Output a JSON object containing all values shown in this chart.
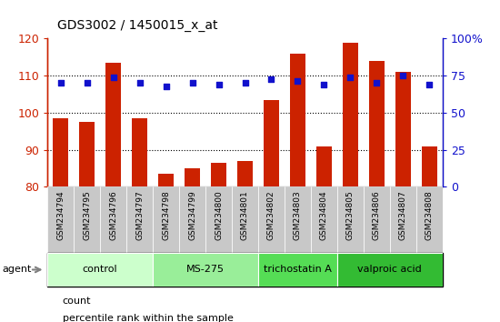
{
  "title": "GDS3002 / 1450015_x_at",
  "samples": [
    "GSM234794",
    "GSM234795",
    "GSM234796",
    "GSM234797",
    "GSM234798",
    "GSM234799",
    "GSM234800",
    "GSM234801",
    "GSM234802",
    "GSM234803",
    "GSM234804",
    "GSM234805",
    "GSM234806",
    "GSM234807",
    "GSM234808"
  ],
  "counts": [
    98.5,
    97.5,
    113.5,
    98.5,
    83.5,
    85.0,
    86.5,
    87.0,
    103.5,
    116.0,
    91.0,
    119.0,
    114.0,
    111.0,
    91.0
  ],
  "percentiles_pct": [
    70.0,
    70.0,
    73.75,
    70.0,
    67.5,
    70.0,
    68.75,
    70.0,
    72.5,
    71.25,
    68.75,
    73.75,
    70.0,
    75.0,
    68.75
  ],
  "bar_color": "#CC2200",
  "dot_color": "#1111CC",
  "ylim_left": [
    80,
    120
  ],
  "ylim_right": [
    0,
    100
  ],
  "yticks_left": [
    80,
    90,
    100,
    110,
    120
  ],
  "yticks_right": [
    0,
    25,
    50,
    75,
    100
  ],
  "groups": [
    {
      "label": "control",
      "start": 0,
      "end": 3,
      "color": "#CCFFCC"
    },
    {
      "label": "MS-275",
      "start": 4,
      "end": 7,
      "color": "#99EE99"
    },
    {
      "label": "trichostatin A",
      "start": 8,
      "end": 10,
      "color": "#55DD55"
    },
    {
      "label": "valproic acid",
      "start": 11,
      "end": 14,
      "color": "#33BB33"
    }
  ],
  "legend_count_label": "count",
  "legend_pct_label": "percentile rank within the sample",
  "agent_label": "agent"
}
